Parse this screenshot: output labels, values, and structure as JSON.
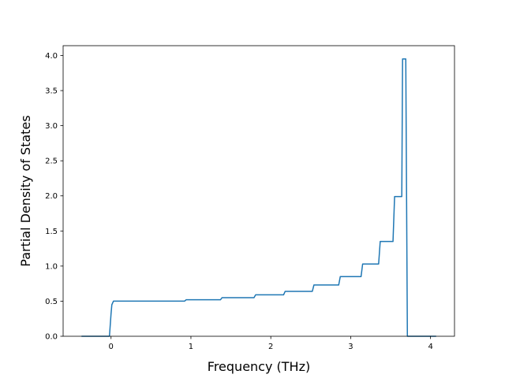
{
  "chart_data": {
    "type": "line",
    "title": "",
    "xlabel": "Frequency (THz)",
    "ylabel": "Partial Density of States",
    "xlim": [
      -0.6,
      4.3
    ],
    "ylim": [
      0.0,
      4.14
    ],
    "xticks": [
      0,
      1,
      2,
      3,
      4
    ],
    "yticks": [
      0.0,
      0.5,
      1.0,
      1.5,
      2.0,
      2.5,
      3.0,
      3.5,
      4.0
    ],
    "xtick_labels": [
      "0",
      "1",
      "2",
      "3",
      "4"
    ],
    "ytick_labels": [
      "0.0",
      "0.5",
      "1.0",
      "1.5",
      "2.0",
      "2.5",
      "3.0",
      "3.5",
      "4.0"
    ],
    "grid": false,
    "legend": "none",
    "series": [
      {
        "color": "#1f77b4",
        "x": [
          -0.37,
          -0.02,
          0.0,
          0.01,
          0.03,
          0.92,
          0.94,
          1.37,
          1.39,
          1.79,
          1.81,
          2.16,
          2.18,
          2.52,
          2.54,
          2.85,
          2.87,
          3.13,
          3.15,
          3.35,
          3.37,
          3.53,
          3.55,
          3.64,
          3.65,
          3.69,
          3.71,
          4.07
        ],
        "y": [
          0.0,
          0.0,
          0.32,
          0.45,
          0.5,
          0.5,
          0.52,
          0.52,
          0.55,
          0.55,
          0.59,
          0.59,
          0.64,
          0.64,
          0.73,
          0.73,
          0.85,
          0.85,
          1.03,
          1.03,
          1.35,
          1.35,
          1.99,
          1.99,
          3.95,
          3.95,
          0.0,
          0.0
        ]
      }
    ]
  }
}
